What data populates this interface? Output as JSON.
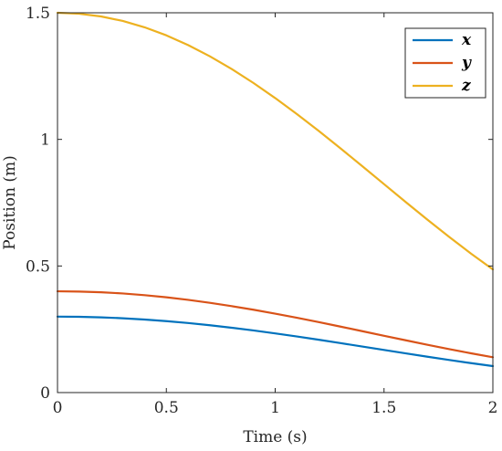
{
  "chart_data": {
    "type": "line",
    "title": "",
    "xlabel": "Time (s)",
    "ylabel": "Position (m)",
    "xlim": [
      0,
      2
    ],
    "ylim": [
      0,
      1.5
    ],
    "x_ticks": [
      "0",
      "0.5",
      "1",
      "1.5",
      "2"
    ],
    "y_ticks": [
      "0",
      "0.5",
      "1",
      "1.5"
    ],
    "grid": false,
    "legend_position": "top-right",
    "x": [
      0,
      0.1,
      0.2,
      0.3,
      0.4,
      0.5,
      0.6,
      0.7,
      0.8,
      0.9,
      1.0,
      1.1,
      1.2,
      1.3,
      1.4,
      1.5,
      1.6,
      1.7,
      1.8,
      1.9,
      2.0
    ],
    "series": [
      {
        "name": "x",
        "color": "#0072BD",
        "values": [
          0.3,
          0.2993,
          0.2971,
          0.2935,
          0.2885,
          0.2822,
          0.2746,
          0.2659,
          0.2561,
          0.2454,
          0.2338,
          0.2215,
          0.2086,
          0.1954,
          0.1819,
          0.1683,
          0.1548,
          0.1415,
          0.1286,
          0.1163,
          0.1046
        ]
      },
      {
        "name": "y",
        "color": "#D95319",
        "values": [
          0.4,
          0.399,
          0.3962,
          0.3914,
          0.3847,
          0.3763,
          0.3662,
          0.3546,
          0.3415,
          0.3272,
          0.3118,
          0.2954,
          0.2782,
          0.2605,
          0.2425,
          0.2244,
          0.2064,
          0.1887,
          0.1715,
          0.1551,
          0.1395
        ]
      },
      {
        "name": "z",
        "color": "#EDB120",
        "values": [
          1.5,
          1.4963,
          1.4856,
          1.4677,
          1.4427,
          1.4109,
          1.3725,
          1.328,
          1.278,
          1.2228,
          1.1632,
          1.0998,
          1.0333,
          0.9645,
          0.8942,
          0.8232,
          0.7523,
          0.6824,
          0.6143,
          0.5487,
          0.4864
        ]
      }
    ]
  }
}
